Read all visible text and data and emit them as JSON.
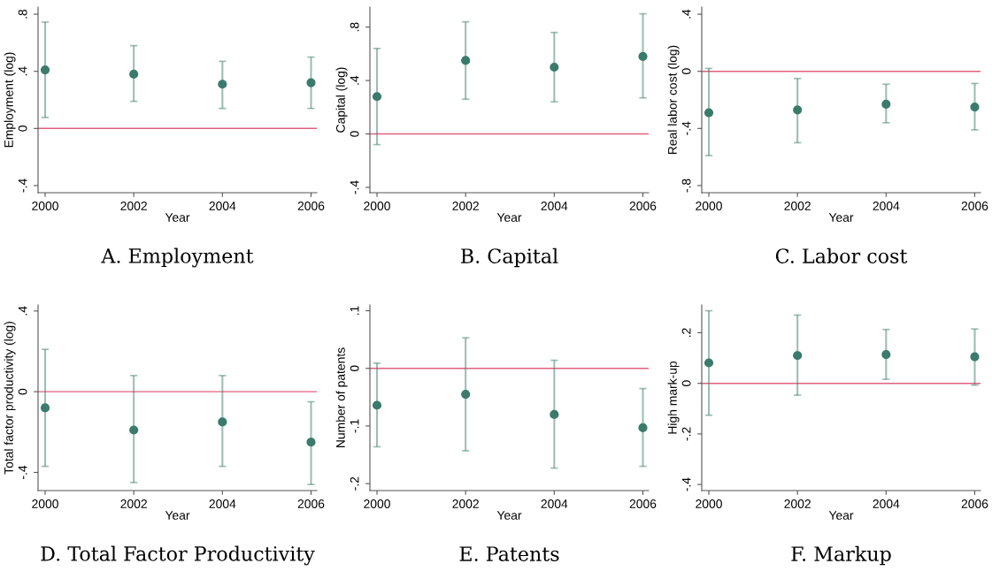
{
  "chart_data": [
    {
      "type": "scatter",
      "title": "A. Employment",
      "xlabel": "Year",
      "ylabel": "Employment (log)",
      "x": [
        2000,
        2002,
        2004,
        2006
      ],
      "xlim": [
        1999.84,
        2006.13
      ],
      "xticks": [
        2000,
        2002,
        2004,
        2006
      ],
      "ylim": [
        -0.45,
        0.85
      ],
      "yticks": [
        {
          "value": -0.4,
          "label": "-.4"
        },
        0,
        {
          "value": 0.4,
          "label": ".4"
        },
        {
          "value": 0.8,
          "label": ".8"
        }
      ],
      "marker": "circle",
      "series": [
        {
          "color": "#3b7b6c",
          "values": [
            0.41,
            0.38,
            0.31,
            0.32
          ],
          "errors": [
            [
              0.077,
              0.745
            ],
            [
              0.19,
              0.58
            ],
            [
              0.14,
              0.47
            ],
            [
              0.14,
              0.5
            ]
          ]
        }
      ],
      "ref_lines": [
        {
          "axis": "y",
          "value": 0,
          "color": "#e0607e"
        }
      ]
    },
    {
      "type": "scatter",
      "title": "B. Capital",
      "xlabel": "Year",
      "ylabel": "Capital (log)",
      "x": [
        2000,
        2002,
        2004,
        2006
      ],
      "xlim": [
        1999.84,
        2006.13
      ],
      "xticks": [
        2000,
        2002,
        2004,
        2006
      ],
      "ylim": [
        -0.44,
        0.95
      ],
      "yticks": [
        {
          "value": -0.4,
          "label": "-.4"
        },
        0,
        {
          "value": 0.4,
          "label": ".4"
        },
        {
          "value": 0.8,
          "label": ".8"
        }
      ],
      "marker": "circle",
      "series": [
        {
          "color": "#3b7b6c",
          "values": [
            0.28,
            0.55,
            0.5,
            0.58
          ],
          "errors": [
            [
              -0.08,
              0.64
            ],
            [
              0.26,
              0.84
            ],
            [
              0.24,
              0.76
            ],
            [
              0.27,
              0.9
            ]
          ]
        }
      ],
      "ref_lines": [
        {
          "axis": "y",
          "value": 0,
          "color": "#e0607e"
        }
      ]
    },
    {
      "type": "scatter",
      "title": "C. Labor cost",
      "xlabel": "Year",
      "ylabel": "Real labor cost (log)",
      "x": [
        2000,
        2002,
        2004,
        2006
      ],
      "xlim": [
        1999.84,
        2006.13
      ],
      "xticks": [
        2000,
        2002,
        2004,
        2006
      ],
      "ylim": [
        -0.85,
        0.45
      ],
      "yticks": [
        {
          "value": -0.8,
          "label": "-.8"
        },
        {
          "value": -0.4,
          "label": "-.4"
        },
        0,
        {
          "value": 0.4,
          "label": ".4"
        }
      ],
      "marker": "circle",
      "series": [
        {
          "color": "#3b7b6c",
          "values": [
            -0.29,
            -0.27,
            -0.23,
            -0.25
          ],
          "errors": [
            [
              -0.59,
              0.02
            ],
            [
              -0.5,
              -0.05
            ],
            [
              -0.36,
              -0.09
            ],
            [
              -0.41,
              -0.085
            ]
          ]
        }
      ],
      "ref_lines": [
        {
          "axis": "y",
          "value": 0,
          "color": "#e0607e"
        }
      ]
    },
    {
      "type": "scatter",
      "title": "D. Total Factor Productivity",
      "xlabel": "Year",
      "ylabel": "Total factor productivity (log)",
      "x": [
        2000,
        2002,
        2004,
        2006
      ],
      "xlim": [
        1999.84,
        2006.13
      ],
      "xticks": [
        2000,
        2002,
        2004,
        2006
      ],
      "ylim": [
        -0.49,
        0.43
      ],
      "yticks": [
        {
          "value": -0.4,
          "label": "-.4"
        },
        0,
        {
          "value": 0.4,
          "label": ".4"
        }
      ],
      "marker": "circle",
      "series": [
        {
          "color": "#3b7b6c",
          "values": [
            -0.08,
            -0.19,
            -0.15,
            -0.25
          ],
          "errors": [
            [
              -0.37,
              0.21
            ],
            [
              -0.45,
              0.08
            ],
            [
              -0.37,
              0.08
            ],
            [
              -0.46,
              -0.05
            ]
          ]
        }
      ],
      "ref_lines": [
        {
          "axis": "y",
          "value": 0,
          "color": "#e0607e"
        }
      ]
    },
    {
      "type": "scatter",
      "title": "E. Patents",
      "xlabel": "Year",
      "ylabel": "Number of patents",
      "x": [
        2000,
        2002,
        2004,
        2006
      ],
      "xlim": [
        1999.84,
        2006.13
      ],
      "xticks": [
        2000,
        2002,
        2004,
        2006
      ],
      "ylim": [
        -0.212,
        0.11
      ],
      "yticks": [
        {
          "value": -0.2,
          "label": "-.2"
        },
        {
          "value": -0.1,
          "label": "-.1"
        },
        0,
        {
          "value": 0.1,
          "label": ".1"
        }
      ],
      "marker": "circle",
      "series": [
        {
          "color": "#3b7b6c",
          "values": [
            -0.064,
            -0.045,
            -0.08,
            -0.103
          ],
          "errors": [
            [
              -0.136,
              0.009
            ],
            [
              -0.143,
              0.053
            ],
            [
              -0.173,
              0.014
            ],
            [
              -0.17,
              -0.035
            ]
          ]
        }
      ],
      "ref_lines": [
        {
          "axis": "y",
          "value": 0,
          "color": "#e0607e"
        }
      ]
    },
    {
      "type": "scatter",
      "title": "F. Markup",
      "xlabel": "Year",
      "ylabel": "High mark-up",
      "x": [
        2000,
        2002,
        2004,
        2006
      ],
      "xlim": [
        1999.84,
        2006.13
      ],
      "xticks": [
        2000,
        2002,
        2004,
        2006
      ],
      "ylim": [
        -0.424,
        0.31
      ],
      "yticks": [
        {
          "value": -0.4,
          "label": "-.4"
        },
        {
          "value": -0.2,
          "label": "-.2"
        },
        0,
        {
          "value": 0.2,
          "label": ".2"
        }
      ],
      "marker": "circle",
      "series": [
        {
          "color": "#3b7b6c",
          "values": [
            0.081,
            0.11,
            0.114,
            0.105
          ],
          "errors": [
            [
              -0.126,
              0.287
            ],
            [
              -0.047,
              0.27
            ],
            [
              0.016,
              0.213
            ],
            [
              -0.007,
              0.215
            ]
          ]
        }
      ],
      "ref_lines": [
        {
          "axis": "y",
          "value": 0,
          "color": "#e0607e"
        }
      ]
    }
  ]
}
